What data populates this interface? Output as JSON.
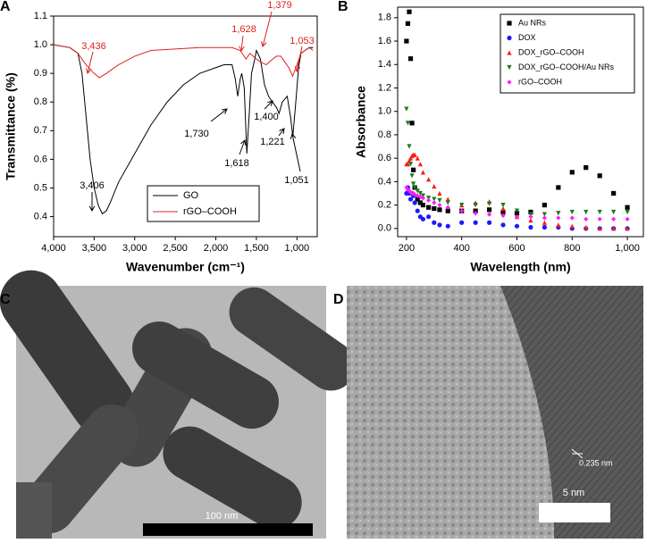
{
  "chart_data": [
    {
      "type": "line",
      "panel": "A",
      "xlabel": "Wavenumber (cm⁻¹)",
      "ylabel": "Transmittance (%)",
      "xlim": [
        4000,
        750
      ],
      "ylim": [
        0.33,
        1.1
      ],
      "xticks": [
        {
          "value": 4000,
          "label": "4,000"
        },
        {
          "value": 3500,
          "label": "3,500"
        },
        {
          "value": 3000,
          "label": "3,000"
        },
        {
          "value": 2500,
          "label": "2,500"
        },
        {
          "value": 2000,
          "label": "2,000"
        },
        {
          "value": 1500,
          "label": "1,500"
        },
        {
          "value": 1000,
          "label": "1,000"
        }
      ],
      "yticks": [
        0.4,
        0.5,
        0.6,
        0.7,
        0.8,
        0.9,
        {
          "value": 1,
          "label": "1.0"
        },
        1.1
      ],
      "series": [
        {
          "name": "GO",
          "color": "#000000",
          "x": [
            4000,
            3800,
            3700,
            3650,
            3600,
            3550,
            3500,
            3450,
            3400,
            3350,
            3300,
            3200,
            3000,
            2800,
            2600,
            2400,
            2200,
            2000,
            1900,
            1800,
            1760,
            1730,
            1700,
            1680,
            1650,
            1618,
            1590,
            1560,
            1520,
            1500,
            1450,
            1400,
            1350,
            1300,
            1250,
            1221,
            1180,
            1120,
            1080,
            1051,
            1020,
            980,
            950,
            900,
            850,
            800
          ],
          "values": [
            1.0,
            0.99,
            0.97,
            0.9,
            0.75,
            0.6,
            0.5,
            0.44,
            0.41,
            0.42,
            0.45,
            0.52,
            0.62,
            0.72,
            0.8,
            0.86,
            0.9,
            0.92,
            0.93,
            0.93,
            0.88,
            0.82,
            0.88,
            0.9,
            0.85,
            0.62,
            0.75,
            0.9,
            0.95,
            0.98,
            0.95,
            0.86,
            0.82,
            0.8,
            0.78,
            0.76,
            0.8,
            0.82,
            0.75,
            0.68,
            0.78,
            0.92,
            0.97,
            0.98,
            0.99,
            0.99
          ]
        },
        {
          "name": "rGO–COOH",
          "color": "#e02020",
          "x": [
            4000,
            3800,
            3700,
            3600,
            3500,
            3436,
            3350,
            3200,
            3000,
            2800,
            2500,
            2200,
            2000,
            1800,
            1700,
            1628,
            1580,
            1500,
            1450,
            1379,
            1300,
            1250,
            1200,
            1150,
            1100,
            1053,
            1000,
            950,
            900,
            850,
            800
          ],
          "values": [
            1.0,
            0.99,
            0.97,
            0.93,
            0.9,
            0.885,
            0.9,
            0.93,
            0.96,
            0.98,
            0.985,
            0.99,
            0.99,
            0.99,
            0.98,
            0.95,
            0.97,
            0.95,
            0.94,
            0.93,
            0.95,
            0.96,
            0.96,
            0.94,
            0.92,
            0.89,
            0.93,
            0.97,
            0.98,
            0.99,
            0.98
          ]
        }
      ],
      "annotations": [
        {
          "text": "3,436",
          "color": "#e02020"
        },
        {
          "text": "1,628",
          "color": "#e02020"
        },
        {
          "text": "1,379",
          "color": "#e02020"
        },
        {
          "text": "1,053",
          "color": "#e02020"
        },
        {
          "text": "3,406",
          "color": "#000000"
        },
        {
          "text": "1,730",
          "color": "#000000"
        },
        {
          "text": "1,618",
          "color": "#000000"
        },
        {
          "text": "1,400",
          "color": "#000000"
        },
        {
          "text": "1,221",
          "color": "#000000"
        },
        {
          "text": "1,051",
          "color": "#000000"
        }
      ]
    },
    {
      "type": "scatter",
      "panel": "B",
      "xlabel": "Wavelength (nm)",
      "ylabel": "Absorbance",
      "xlim": [
        168,
        1058
      ],
      "ylim": [
        -0.07,
        1.89
      ],
      "xticks": [
        200,
        400,
        600,
        800,
        {
          "value": 1000,
          "label": "1,000"
        }
      ],
      "yticks": [
        {
          "value": 0,
          "label": "0.0"
        },
        0.2,
        0.4,
        0.6,
        0.8,
        {
          "value": 1,
          "label": "1.0"
        },
        1.2,
        1.4,
        1.6,
        1.8
      ],
      "x": [
        200,
        205,
        210,
        215,
        220,
        225,
        230,
        240,
        250,
        260,
        280,
        300,
        320,
        350,
        400,
        450,
        500,
        550,
        600,
        650,
        700,
        750,
        800,
        850,
        900,
        950,
        1000
      ],
      "series": [
        {
          "name": "Au NRs",
          "color": "#000000",
          "marker": "square",
          "values": [
            1.6,
            1.75,
            1.85,
            1.45,
            0.9,
            0.5,
            0.35,
            0.25,
            0.22,
            0.2,
            0.18,
            0.17,
            0.16,
            0.15,
            0.15,
            0.15,
            0.16,
            0.14,
            0.13,
            0.14,
            0.2,
            0.35,
            0.48,
            0.52,
            0.45,
            0.3,
            0.18
          ]
        },
        {
          "name": "DOX",
          "color": "#1a1aff",
          "marker": "circle",
          "values": [
            0.3,
            0.35,
            0.3,
            0.25,
            0.3,
            0.28,
            0.22,
            0.15,
            0.1,
            0.08,
            0.1,
            0.05,
            0.03,
            0.02,
            0.05,
            0.05,
            0.05,
            0.03,
            0.02,
            0.01,
            0.01,
            0.01,
            0.0,
            0.0,
            0.0,
            0.0,
            0.0
          ]
        },
        {
          "name": "DOX_rGO–COOH",
          "color": "#ff1a1a",
          "marker": "triangle",
          "values": [
            0.55,
            0.55,
            0.58,
            0.6,
            0.62,
            0.63,
            0.63,
            0.6,
            0.55,
            0.48,
            0.42,
            0.36,
            0.3,
            0.25,
            0.2,
            0.22,
            0.23,
            0.17,
            0.1,
            0.07,
            0.05,
            0.03,
            0.02,
            0.01,
            0.0,
            0.0,
            0.0
          ]
        },
        {
          "name": "DOX_rGO–COOH/Au NRs",
          "color": "#1a7a1a",
          "marker": "triangle-down",
          "values": [
            1.02,
            0.9,
            0.7,
            0.55,
            0.45,
            0.38,
            0.35,
            0.32,
            0.3,
            0.28,
            0.26,
            0.25,
            0.24,
            0.22,
            0.2,
            0.2,
            0.21,
            0.2,
            0.15,
            0.12,
            0.12,
            0.13,
            0.14,
            0.14,
            0.14,
            0.14,
            0.14
          ]
        },
        {
          "name": "rGO–COOH",
          "color": "#ff1aff",
          "marker": "diamond",
          "values": [
            0.35,
            0.33,
            0.32,
            0.31,
            0.3,
            0.3,
            0.29,
            0.28,
            0.27,
            0.26,
            0.24,
            0.22,
            0.2,
            0.18,
            0.15,
            0.13,
            0.12,
            0.11,
            0.1,
            0.1,
            0.09,
            0.09,
            0.09,
            0.08,
            0.08,
            0.08,
            0.08
          ]
        }
      ]
    }
  ],
  "images": [
    {
      "panel": "C",
      "scale_label": "100 nm"
    },
    {
      "panel": "D",
      "scale_label": "5 nm",
      "annotation": "0.235 nm"
    }
  ]
}
